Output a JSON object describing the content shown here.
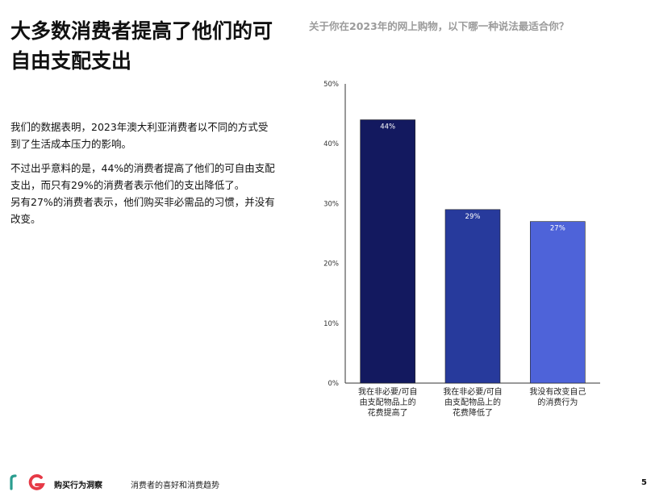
{
  "slide": {
    "title": "大多数消费者提高了他们的可自由支配支出",
    "paragraphs": [
      "我们的数据表明，2023年澳大利亚消费者以不同的方式受到了生活成本压力的影响。",
      "不过出乎意料的是，44%的消费者提高了他们的可自由支配支出，而只有29%的消费者表示他们的支出降低了。",
      "另有27%的消费者表示，他们购买非必需品的习惯，并没有改变。"
    ]
  },
  "chart_data": {
    "type": "bar",
    "title": "关于你在2023年的网上购物，以下哪一种说法最适合你？",
    "categories": [
      [
        "我在非必要/可自",
        "由支配物品上的",
        "花费提高了"
      ],
      [
        "我在非必要/可自",
        "由支配物品上的",
        "花费降低了"
      ],
      [
        "我没有改变自己",
        "的消费行为"
      ]
    ],
    "values": [
      44,
      29,
      27
    ],
    "value_labels": [
      "44%",
      "29%",
      "27%"
    ],
    "bar_colors": [
      "#13195f",
      "#273a9c",
      "#4e63d9"
    ],
    "yticks": [
      "0%",
      "10%",
      "20%",
      "30%",
      "40%",
      "50%"
    ],
    "ylim": [
      0,
      50
    ],
    "grid": false
  },
  "footer": {
    "brand": "购买行为洞察",
    "subtitle": "消费者的喜好和消费趋势",
    "page": "5",
    "logo_colors": [
      "#2a9d8f",
      "#e63946",
      "#1d3557"
    ]
  }
}
